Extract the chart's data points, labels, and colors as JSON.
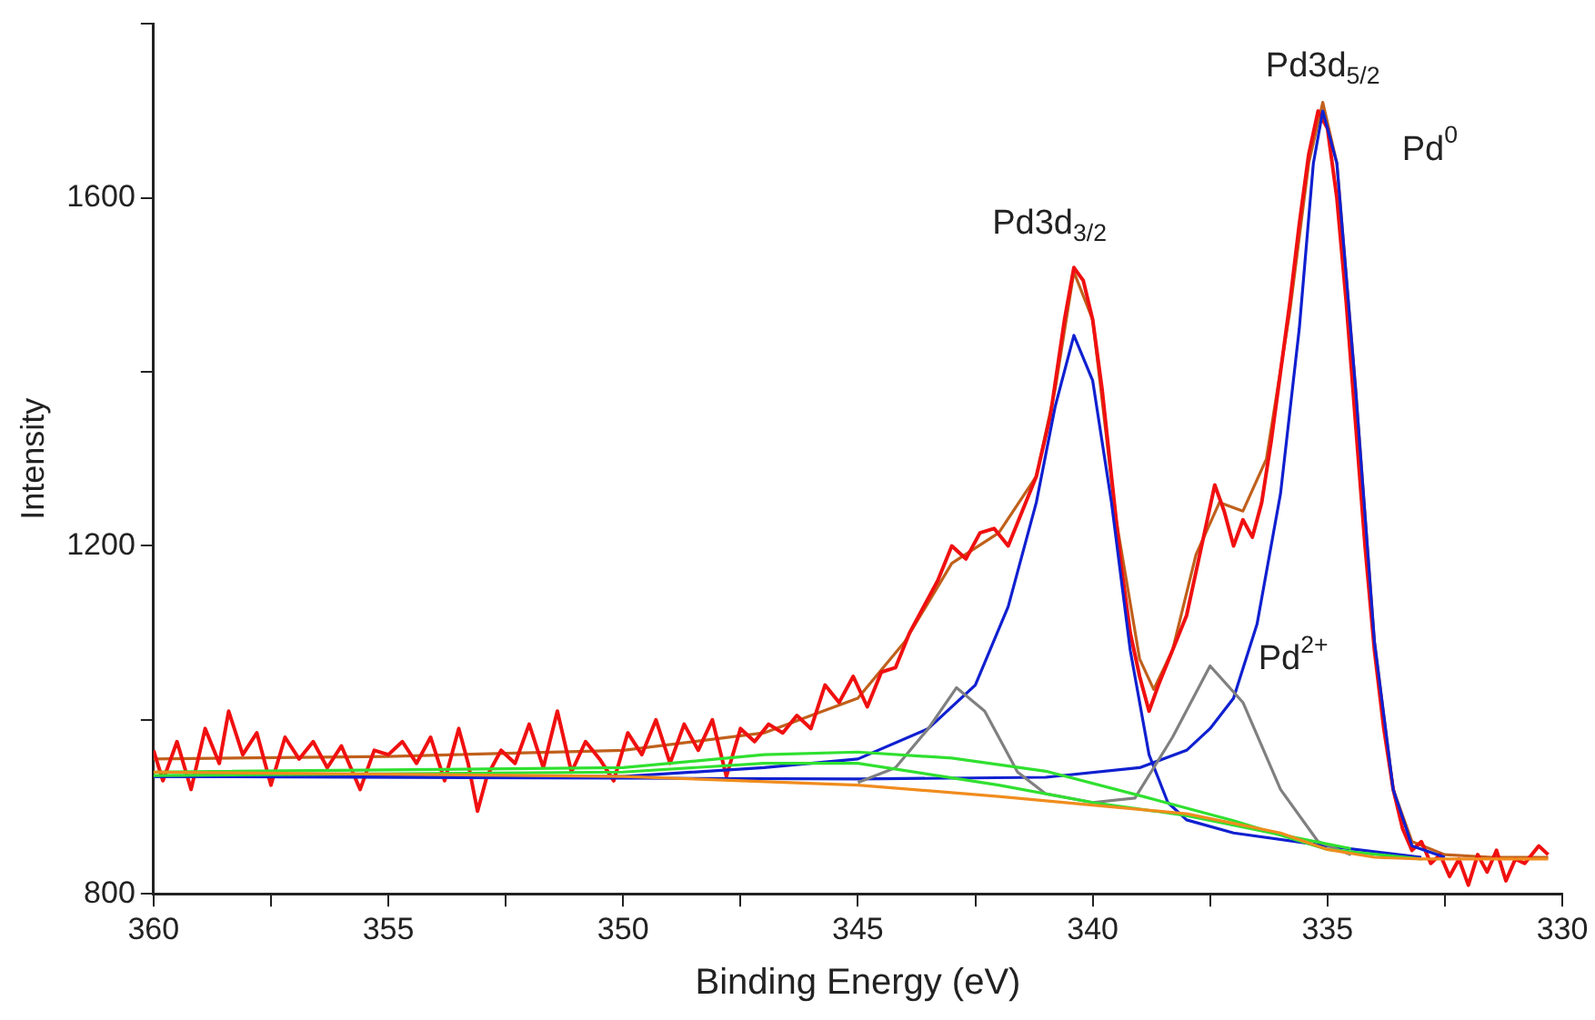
{
  "chart_data": {
    "type": "line",
    "xlabel": "Binding Energy (eV)",
    "ylabel": "Intensity",
    "xlim": [
      360,
      330
    ],
    "xticks": [
      360,
      {
        "value": 357.5,
        "label": null
      },
      355,
      {
        "value": 352.5,
        "label": null
      },
      350,
      {
        "value": 347.5,
        "label": null
      },
      345,
      {
        "value": 342.5,
        "label": null
      },
      340,
      {
        "value": 337.5,
        "label": null
      },
      335,
      {
        "value": 332.5,
        "label": null
      },
      330
    ],
    "ylim": [
      800,
      1800
    ],
    "yticks": [
      800,
      {
        "value": 1000,
        "label": null
      },
      1200,
      {
        "value": 1400,
        "label": null
      },
      1600,
      {
        "value": 1800,
        "label": null
      }
    ],
    "grid": false,
    "legend": false,
    "marker": "none",
    "line_style": "solid",
    "annotations": [
      "Pd3d$_{3/2}$",
      "Pd3d$_{5/2}$",
      "Pd$^{0}$",
      "Pd$^{2+}$"
    ],
    "series": [
      {
        "color": "#f08c1e",
        "x": [
          360,
          350,
          345,
          342,
          340,
          338,
          336,
          335,
          334,
          333,
          330.3
        ],
        "values": [
          940,
          935,
          925,
          912,
          902,
          892,
          870,
          851,
          842,
          840,
          840
        ]
      },
      {
        "color": "#30e030",
        "x": [
          360,
          350,
          347,
          345,
          343,
          341,
          339,
          337,
          335,
          333
        ],
        "values": [
          940,
          945,
          960,
          963,
          956,
          941,
          913,
          884,
          851,
          840
        ]
      },
      {
        "color": "#30e030",
        "x": [
          360,
          350,
          347,
          345,
          342,
          340,
          338,
          336,
          334.5
        ],
        "values": [
          936,
          940,
          950,
          950,
          925,
          905,
          890,
          868,
          852
        ]
      },
      {
        "color": "#808080",
        "x": [
          345,
          344.2,
          343.5,
          342.9,
          342.3,
          341.6,
          341,
          340,
          339.1,
          338.3,
          337.5,
          336.8,
          336,
          335.2,
          334.5
        ],
        "values": [
          928,
          945,
          990,
          1037,
          1010,
          940,
          915,
          905,
          910,
          980,
          1062,
          1020,
          920,
          860,
          845
        ]
      },
      {
        "color": "#1020d0",
        "x": [
          360,
          350,
          347,
          345,
          343.5,
          342.5,
          341.8,
          341.2,
          340.8,
          340.4,
          340,
          339.6,
          339.2,
          338.8,
          338.4,
          338,
          337,
          335,
          333
        ],
        "values": [
          935,
          935,
          945,
          955,
          990,
          1040,
          1130,
          1250,
          1360,
          1442,
          1390,
          1250,
          1080,
          960,
          905,
          885,
          870,
          855,
          842
        ]
      },
      {
        "color": "#1020d0",
        "x": [
          360,
          345,
          341,
          339,
          338,
          337.5,
          337,
          336.5,
          336,
          335.6,
          335.3,
          335.1,
          334.8,
          334.4,
          334,
          333.6,
          333.2,
          332.5
        ],
        "values": [
          935,
          932,
          934,
          945,
          965,
          990,
          1025,
          1110,
          1260,
          1450,
          1640,
          1700,
          1640,
          1380,
          1090,
          920,
          855,
          842
        ]
      },
      {
        "color": "#f01010",
        "x": [
          360,
          359.8,
          359.5,
          359.2,
          358.9,
          358.6,
          358.4,
          358.1,
          357.8,
          357.5,
          357.2,
          356.9,
          356.6,
          356.3,
          356,
          355.6,
          355.3,
          355,
          354.7,
          354.4,
          354.1,
          353.8,
          353.5,
          353.3,
          353.1,
          352.9,
          352.6,
          352.3,
          352,
          351.7,
          351.4,
          351.1,
          350.8,
          350.5,
          350.2,
          349.9,
          349.6,
          349.3,
          349,
          348.7,
          348.4,
          348.1,
          347.8,
          347.5,
          347.2,
          346.9,
          346.6,
          346.3,
          346,
          345.7,
          345.4,
          345.1,
          344.8,
          344.5,
          344.2,
          343.9,
          343.6,
          343.3,
          343,
          342.7,
          342.4,
          342.1,
          341.8,
          341.5,
          341.2,
          340.9,
          340.6,
          340.4,
          340.2,
          340,
          339.8,
          339.6,
          339.4,
          339.2,
          339,
          338.8,
          338.6,
          338.3,
          338,
          337.8,
          337.6,
          337.4,
          337.2,
          337,
          336.8,
          336.6,
          336.4,
          336.2,
          336,
          335.8,
          335.6,
          335.4,
          335.2,
          335,
          334.8,
          334.6,
          334.4,
          334.2,
          334,
          333.8,
          333.6,
          333.4,
          333.2,
          333,
          332.8,
          332.6,
          332.4,
          332.2,
          332,
          331.8,
          331.6,
          331.4,
          331.2,
          331,
          330.8,
          330.5,
          330.3
        ],
        "values": [
          965,
          930,
          975,
          920,
          990,
          950,
          1010,
          960,
          985,
          925,
          980,
          955,
          975,
          945,
          970,
          920,
          965,
          960,
          975,
          950,
          980,
          930,
          990,
          950,
          895,
          935,
          965,
          950,
          995,
          945,
          1010,
          940,
          975,
          955,
          930,
          985,
          960,
          1000,
          950,
          995,
          965,
          1000,
          935,
          990,
          975,
          995,
          985,
          1005,
          990,
          1040,
          1020,
          1050,
          1015,
          1055,
          1060,
          1100,
          1130,
          1160,
          1200,
          1185,
          1215,
          1220,
          1200,
          1240,
          1280,
          1350,
          1460,
          1520,
          1505,
          1460,
          1380,
          1280,
          1180,
          1100,
          1050,
          1010,
          1040,
          1080,
          1120,
          1170,
          1220,
          1270,
          1240,
          1200,
          1230,
          1210,
          1250,
          1320,
          1400,
          1480,
          1570,
          1650,
          1700,
          1680,
          1600,
          1480,
          1340,
          1200,
          1080,
          990,
          920,
          875,
          850,
          860,
          835,
          845,
          820,
          840,
          810,
          845,
          825,
          850,
          815,
          840,
          835,
          855,
          845
        ]
      },
      {
        "color": "#c0601c",
        "x": [
          360,
          355,
          350,
          347,
          345,
          344,
          343,
          342,
          341.2,
          340.8,
          340.4,
          340,
          339.5,
          339,
          338.7,
          338.3,
          337.8,
          337.3,
          336.8,
          336.3,
          335.8,
          335.4,
          335.1,
          334.8,
          334.4,
          334,
          333.6,
          333.2,
          332.5,
          331.5,
          330.3
        ],
        "values": [
          955,
          958,
          965,
          985,
          1025,
          1090,
          1180,
          1215,
          1280,
          1380,
          1515,
          1460,
          1230,
          1070,
          1035,
          1080,
          1190,
          1250,
          1240,
          1300,
          1470,
          1640,
          1710,
          1640,
          1380,
          1090,
          920,
          860,
          845,
          842,
          842
        ]
      }
    ]
  }
}
